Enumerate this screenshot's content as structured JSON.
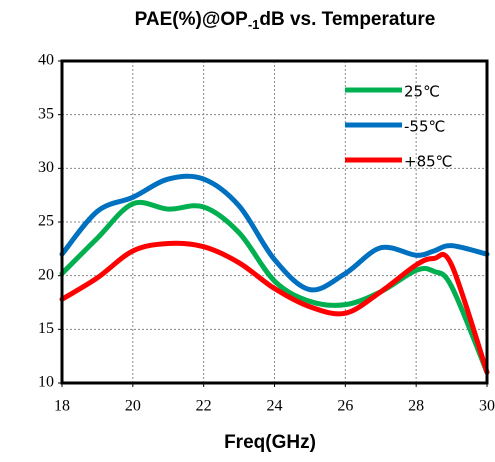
{
  "chart_data": {
    "type": "line",
    "title": [
      "PAE(%)@OP",
      "-1",
      "dB vs. Temperature"
    ],
    "x_label": "Freq(GHz)",
    "x": [
      18,
      19,
      20,
      21,
      22,
      23,
      24,
      25,
      26,
      27,
      28,
      28.5,
      29,
      30
    ],
    "series": [
      {
        "name": "25℃",
        "color": "#00b050",
        "values": [
          20.2,
          23.5,
          26.7,
          26.2,
          26.4,
          24,
          19.5,
          17.6,
          17.3,
          18.5,
          20.5,
          20.4,
          19,
          11
        ]
      },
      {
        "name": "-55℃",
        "color": "#0070c0",
        "values": [
          22,
          26,
          27.3,
          29,
          29,
          26.5,
          21.5,
          18.7,
          20.2,
          22.6,
          21.9,
          22.3,
          22.8,
          22
        ]
      },
      {
        "name": "+85℃",
        "color": "#ff0000",
        "values": [
          17.8,
          19.8,
          22.3,
          23,
          22.7,
          21.2,
          18.8,
          17.1,
          16.5,
          18.5,
          21,
          21.6,
          21,
          11
        ]
      }
    ],
    "xlim": [
      18,
      30
    ],
    "xticks": [
      18,
      20,
      22,
      24,
      26,
      28,
      30
    ],
    "ylim": [
      10,
      40
    ],
    "yticks": [
      10,
      15,
      20,
      25,
      30,
      35,
      40
    ],
    "grid": true,
    "legend": "upper right"
  }
}
